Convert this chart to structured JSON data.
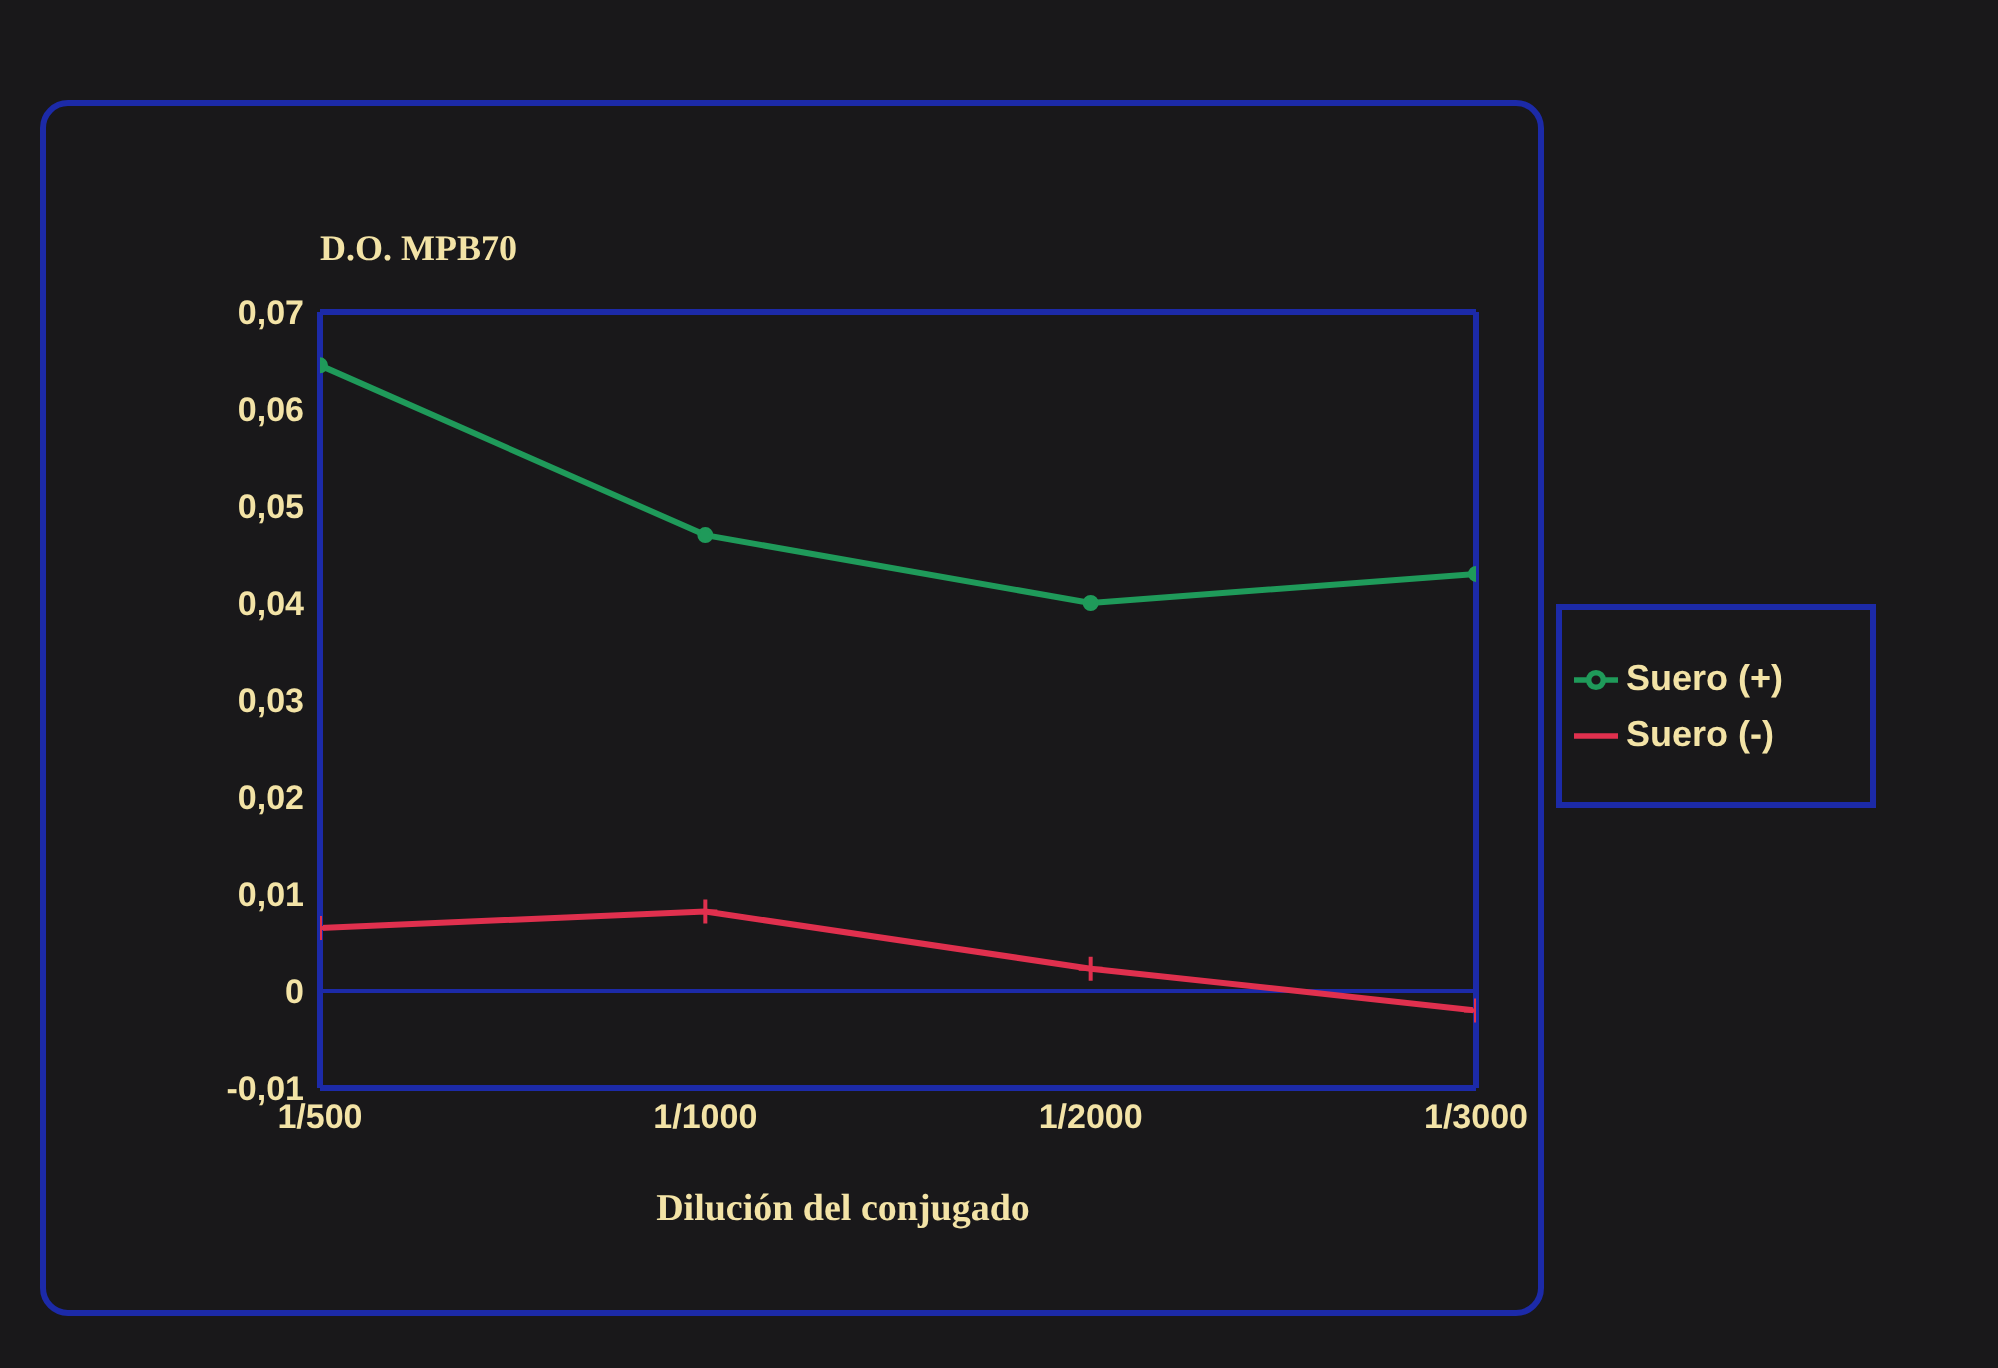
{
  "chart_data": {
    "type": "line",
    "ylabel": "D.O. MPB70",
    "xlabel": "Dilución del conjugado",
    "categories": [
      "1/500",
      "1/1000",
      "1/2000",
      "1/3000"
    ],
    "series": [
      {
        "name": "Suero (+)",
        "color": "#1f9a5a",
        "marker": "circle",
        "values": [
          0.0645,
          0.047,
          0.04,
          0.043
        ]
      },
      {
        "name": "Suero (-)",
        "color": "#e0304e",
        "marker": "cross",
        "values": [
          0.0065,
          0.0082,
          0.0023,
          -0.002
        ]
      }
    ],
    "ylim": [
      -0.01,
      0.07
    ],
    "yticks": [
      {
        "value": -0.01,
        "label": "-0,01"
      },
      {
        "value": 0,
        "label": "0"
      },
      {
        "value": 0.01,
        "label": "0,01"
      },
      {
        "value": 0.02,
        "label": "0,02"
      },
      {
        "value": 0.03,
        "label": "0,03"
      },
      {
        "value": 0.04,
        "label": "0,04"
      },
      {
        "value": 0.05,
        "label": "0,05"
      },
      {
        "value": 0.06,
        "label": "0,06"
      },
      {
        "value": 0.07,
        "label": "0,07"
      }
    ],
    "ref_lines": [
      {
        "axis": "y",
        "value": 0,
        "color": "#1c2aa8"
      }
    ],
    "legend": "right",
    "grid": false
  }
}
